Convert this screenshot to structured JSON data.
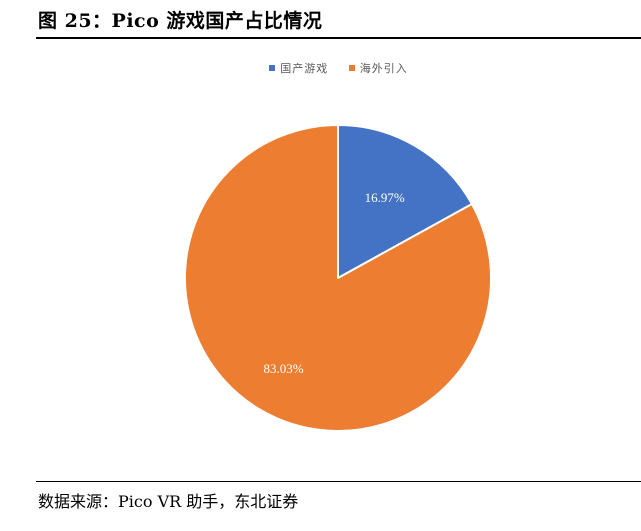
{
  "figure": {
    "title": "图 25：Pico 游戏国产占比情况",
    "source": "数据来源：Pico VR 助手，东北证券"
  },
  "chart_data": {
    "type": "pie",
    "labels": [
      "国产游戏",
      "海外引入"
    ],
    "values": [
      16.97,
      83.03
    ],
    "data_labels": [
      "16.97%",
      "83.03%"
    ],
    "colors": [
      "#4472C4",
      "#ED7D31"
    ],
    "legend_position": "top",
    "start_angle": "12 o'clock",
    "direction": "clockwise"
  }
}
